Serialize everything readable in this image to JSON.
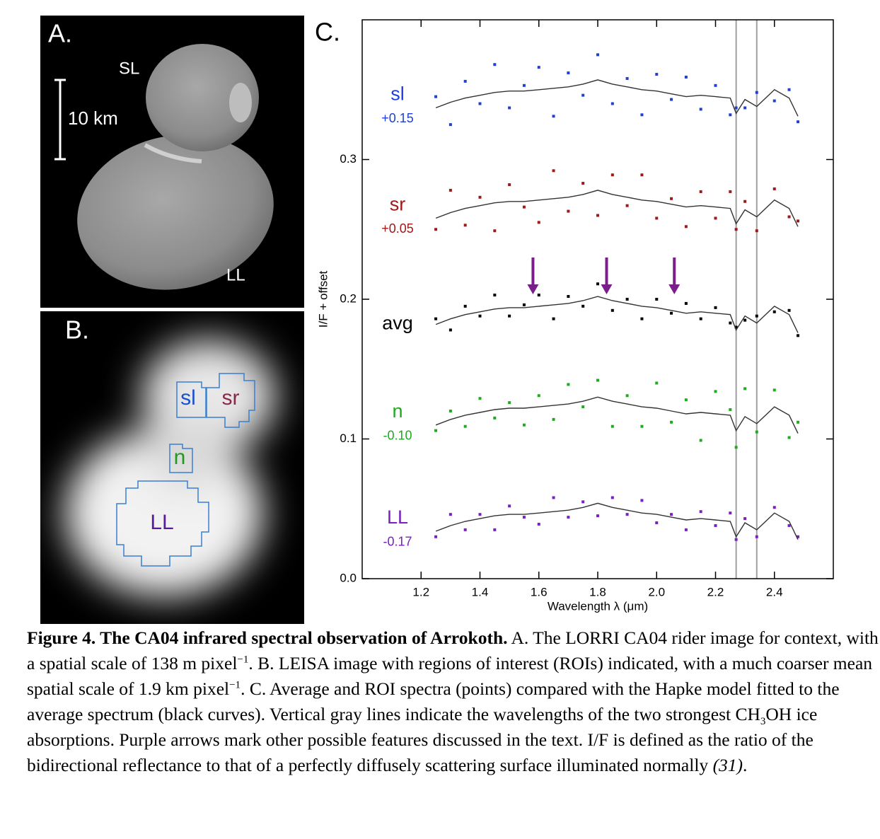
{
  "panel_a": {
    "label": "A.",
    "top_lobe": "SL",
    "bottom_lobe": "LL",
    "scale": "10 km"
  },
  "panel_b": {
    "label": "B.",
    "rois": [
      "sl",
      "sr",
      "n",
      "LL"
    ]
  },
  "chart_data": {
    "type": "scatter",
    "panel_label": "C.",
    "x_label": "Wavelength λ (μm)",
    "y_label": "I/F + offset",
    "xlim": [
      1.0,
      2.6
    ],
    "ylim": [
      0,
      0.4
    ],
    "xticks": [
      1.2,
      1.4,
      1.6,
      1.8,
      {
        "value": 2,
        "label": "2.0"
      },
      2.2,
      2.4
    ],
    "yticks": [
      {
        "value": 0,
        "label": "0.0"
      },
      0.1,
      0.2,
      0.3
    ],
    "vlines": [
      2.27,
      2.34
    ],
    "vline_color": "#a0a0a0",
    "arrows": [
      1.58,
      1.83,
      2.06
    ],
    "arrow_color": "#7a1f8a",
    "model_color": "#333333",
    "x": [
      1.25,
      1.3,
      1.35,
      1.4,
      1.45,
      1.5,
      1.55,
      1.6,
      1.65,
      1.7,
      1.75,
      1.8,
      1.85,
      1.9,
      1.95,
      2.0,
      2.05,
      2.1,
      2.15,
      2.2,
      2.25,
      2.27,
      2.3,
      2.34,
      2.4,
      2.45,
      2.48
    ],
    "series": [
      {
        "name": "sl",
        "offset": "+0.15",
        "color": "#1f3fd6",
        "values": [
          0.345,
          0.325,
          0.356,
          0.34,
          0.368,
          0.337,
          0.353,
          0.366,
          0.331,
          0.362,
          0.346,
          0.375,
          0.34,
          0.358,
          0.332,
          0.361,
          0.343,
          0.359,
          0.336,
          0.353,
          0.332,
          0.337,
          0.337,
          0.348,
          0.342,
          0.35,
          0.327
        ],
        "model": [
          0.337,
          0.341,
          0.344,
          0.346,
          0.348,
          0.349,
          0.349,
          0.35,
          0.351,
          0.352,
          0.354,
          0.357,
          0.354,
          0.352,
          0.35,
          0.349,
          0.347,
          0.345,
          0.346,
          0.345,
          0.344,
          0.333,
          0.343,
          0.338,
          0.35,
          0.344,
          0.331
        ]
      },
      {
        "name": "sr",
        "offset": "+0.05",
        "color": "#a01818",
        "values": [
          0.25,
          0.278,
          0.253,
          0.273,
          0.249,
          0.282,
          0.266,
          0.255,
          0.292,
          0.263,
          0.283,
          0.26,
          0.289,
          0.267,
          0.289,
          0.258,
          0.272,
          0.252,
          0.277,
          0.258,
          0.277,
          0.25,
          0.27,
          0.249,
          0.279,
          0.259,
          0.256
        ],
        "model": [
          0.258,
          0.262,
          0.265,
          0.267,
          0.269,
          0.27,
          0.27,
          0.271,
          0.272,
          0.273,
          0.275,
          0.278,
          0.275,
          0.273,
          0.271,
          0.27,
          0.268,
          0.266,
          0.267,
          0.266,
          0.265,
          0.254,
          0.264,
          0.259,
          0.271,
          0.265,
          0.252
        ]
      },
      {
        "name": "avg",
        "color": "#000000",
        "values": [
          0.186,
          0.178,
          0.195,
          0.188,
          0.203,
          0.188,
          0.196,
          0.203,
          0.186,
          0.202,
          0.195,
          0.211,
          0.192,
          0.2,
          0.186,
          0.2,
          0.19,
          0.197,
          0.186,
          0.194,
          0.183,
          0.18,
          0.185,
          0.188,
          0.191,
          0.192,
          0.174
        ],
        "model": [
          0.182,
          0.186,
          0.189,
          0.191,
          0.193,
          0.194,
          0.194,
          0.195,
          0.196,
          0.197,
          0.199,
          0.202,
          0.199,
          0.197,
          0.195,
          0.194,
          0.192,
          0.19,
          0.191,
          0.19,
          0.189,
          0.178,
          0.188,
          0.183,
          0.195,
          0.189,
          0.176
        ]
      },
      {
        "name": "n",
        "offset": "-0.10",
        "color": "#1faa1f",
        "values": [
          0.106,
          0.12,
          0.109,
          0.129,
          0.115,
          0.126,
          0.11,
          0.131,
          0.114,
          0.139,
          0.123,
          0.142,
          0.109,
          0.131,
          0.109,
          0.14,
          0.112,
          0.128,
          0.099,
          0.134,
          0.121,
          0.094,
          0.136,
          0.105,
          0.135,
          0.101,
          0.112
        ],
        "model": [
          0.11,
          0.114,
          0.117,
          0.119,
          0.121,
          0.122,
          0.122,
          0.123,
          0.124,
          0.125,
          0.127,
          0.13,
          0.127,
          0.125,
          0.123,
          0.122,
          0.12,
          0.118,
          0.119,
          0.118,
          0.117,
          0.106,
          0.116,
          0.111,
          0.123,
          0.117,
          0.104
        ]
      },
      {
        "name": "LL",
        "offset": "-0.17",
        "color": "#7a1fc0",
        "values": [
          0.03,
          0.046,
          0.035,
          0.046,
          0.035,
          0.052,
          0.044,
          0.039,
          0.058,
          0.044,
          0.055,
          0.045,
          0.058,
          0.046,
          0.056,
          0.04,
          0.046,
          0.035,
          0.048,
          0.038,
          0.047,
          0.028,
          0.043,
          0.03,
          0.051,
          0.038,
          0.03
        ],
        "model": [
          0.034,
          0.038,
          0.041,
          0.043,
          0.045,
          0.046,
          0.046,
          0.047,
          0.048,
          0.049,
          0.051,
          0.054,
          0.051,
          0.049,
          0.047,
          0.046,
          0.044,
          0.042,
          0.043,
          0.042,
          0.041,
          0.03,
          0.04,
          0.035,
          0.047,
          0.041,
          0.028
        ]
      }
    ]
  },
  "caption": {
    "title": "Figure 4.  The CA04 infrared spectral observation of Arrokoth.",
    "parts": [
      " A. The LORRI CA04 rider image for context, with a spatial scale of 138 m pixel",
      "−1",
      ".  B. LEISA image with regions of interest (ROIs) indicated, with a much coarser mean spatial scale of 1.9 km pixel",
      "−1",
      ".  C. Average and ROI spectra (points) compared with the Hapke model fitted to the average spectrum (black curves).  Vertical gray lines indicate the wavelengths of the two strongest CH",
      "3",
      "OH ice absorptions.  Purple arrows mark other possible features discussed in the text.  I/F is defined as the ratio of the bidirectional reflectance to that of a perfectly diffusely scattering surface illuminated normally ",
      "(31)",
      "."
    ]
  }
}
